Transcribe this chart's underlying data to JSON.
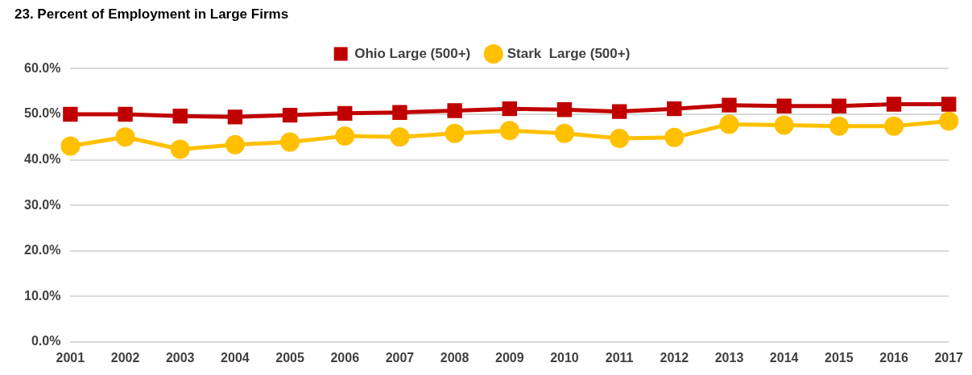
{
  "chart_data": {
    "type": "line",
    "title": "23. Percent of Employment in Large Firms",
    "categories": [
      "2001",
      "2002",
      "2003",
      "2004",
      "2005",
      "2006",
      "2007",
      "2008",
      "2009",
      "2010",
      "2011",
      "2012",
      "2013",
      "2014",
      "2015",
      "2016",
      "2017"
    ],
    "series": [
      {
        "name": "Ohio Large (500+)",
        "color": "#c00000",
        "marker": "square",
        "values": [
          50.0,
          50.0,
          49.6,
          49.4,
          49.8,
          50.2,
          50.4,
          50.8,
          51.2,
          51.0,
          50.6,
          51.2,
          52.0,
          51.8,
          51.8,
          52.2,
          52.2
        ]
      },
      {
        "name": "Stark  Large (500+)",
        "color": "#ffc000",
        "marker": "circle",
        "values": [
          43.0,
          45.0,
          42.3,
          43.3,
          43.9,
          45.2,
          45.0,
          45.8,
          46.4,
          45.8,
          44.7,
          44.9,
          47.8,
          47.6,
          47.4,
          47.4,
          48.5
        ]
      }
    ],
    "ylim": [
      0,
      60
    ],
    "yticks": [
      {
        "value": 0,
        "label": "0.0%"
      },
      {
        "value": 10,
        "label": "10.0%"
      },
      {
        "value": 20,
        "label": "20.0%"
      },
      {
        "value": 30,
        "label": "30.0%"
      },
      {
        "value": 40,
        "label": "40.0%"
      },
      {
        "value": 50,
        "label": "50.0%"
      },
      {
        "value": 60,
        "label": "60.0%"
      }
    ],
    "grid": "y",
    "legend": "top"
  }
}
